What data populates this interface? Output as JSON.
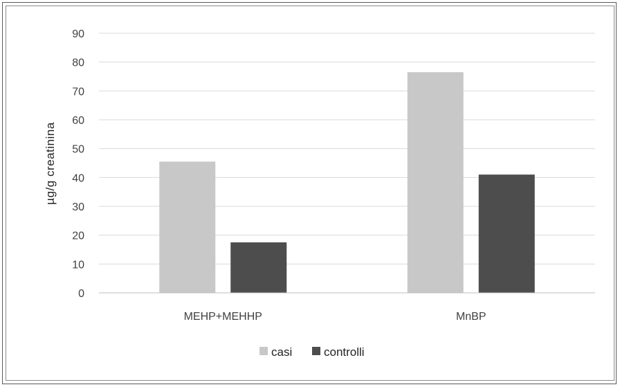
{
  "chart_data": {
    "type": "bar",
    "categories": [
      "MEHP+MEHHP",
      "MnBP"
    ],
    "series": [
      {
        "name": "casi",
        "values": [
          45.5,
          76.5
        ],
        "color": "#c8c8c8"
      },
      {
        "name": "controlli",
        "values": [
          17.5,
          41
        ],
        "color": "#4d4d4d"
      }
    ],
    "title": "",
    "xlabel": "",
    "ylabel": "µg/g creatinina",
    "ylim": [
      0,
      90
    ],
    "yticks": [
      "0",
      "10",
      "20",
      "30",
      "40",
      "50",
      "60",
      "70",
      "80",
      "90"
    ],
    "grid": true,
    "legend_position": "bottom"
  }
}
